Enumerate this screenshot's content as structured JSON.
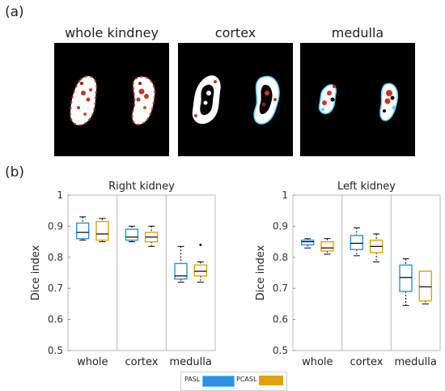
{
  "panel_a_label": "(a)",
  "panel_b_label": "(b)",
  "images": [
    {
      "title": "whole kindney"
    },
    {
      "title": "cortex"
    },
    {
      "title": "medulla"
    }
  ],
  "colors": {
    "pasl": "#2f8fe3",
    "pcasl": "#e3a00c",
    "median": "#000000"
  },
  "legend": {
    "pasl": "PASL",
    "pcasl": "PCASL"
  },
  "chart_data": [
    {
      "type": "box",
      "title": "Right kidney",
      "ylabel": "Dice index",
      "ylim": [
        0.5,
        1
      ],
      "yticks": [
        "0.5",
        "0.6",
        "0.7",
        "0.8",
        "0.9",
        "1"
      ],
      "categories": [
        "whole",
        "cortex",
        "medulla"
      ],
      "series": [
        {
          "name": "PASL",
          "boxes": [
            {
              "min": 0.855,
              "q1": 0.86,
              "median": 0.88,
              "q3": 0.91,
              "max": 0.93,
              "outliers": []
            },
            {
              "min": 0.85,
              "q1": 0.855,
              "median": 0.865,
              "q3": 0.89,
              "max": 0.9,
              "outliers": []
            },
            {
              "min": 0.72,
              "q1": 0.73,
              "median": 0.74,
              "q3": 0.78,
              "max": 0.835,
              "outliers": []
            }
          ]
        },
        {
          "name": "PCASL",
          "boxes": [
            {
              "min": 0.85,
              "q1": 0.855,
              "median": 0.875,
              "q3": 0.915,
              "max": 0.925,
              "outliers": []
            },
            {
              "min": 0.835,
              "q1": 0.85,
              "median": 0.865,
              "q3": 0.88,
              "max": 0.9,
              "outliers": []
            },
            {
              "min": 0.72,
              "q1": 0.74,
              "median": 0.755,
              "q3": 0.775,
              "max": 0.785,
              "outliers": [
                0.84
              ]
            }
          ]
        }
      ]
    },
    {
      "type": "box",
      "title": "Left kidney",
      "ylabel": "Dice index",
      "ylim": [
        0.5,
        1
      ],
      "yticks": [
        "0.5",
        "0.6",
        "0.7",
        "0.8",
        "0.9",
        "1"
      ],
      "categories": [
        "whole",
        "cortex",
        "medulla"
      ],
      "series": [
        {
          "name": "PASL",
          "boxes": [
            {
              "min": 0.83,
              "q1": 0.84,
              "median": 0.85,
              "q3": 0.855,
              "max": 0.86,
              "outliers": []
            },
            {
              "min": 0.805,
              "q1": 0.825,
              "median": 0.845,
              "q3": 0.87,
              "max": 0.895,
              "outliers": []
            },
            {
              "min": 0.645,
              "q1": 0.69,
              "median": 0.735,
              "q3": 0.775,
              "max": 0.795,
              "outliers": []
            }
          ]
        },
        {
          "name": "PCASL",
          "boxes": [
            {
              "min": 0.81,
              "q1": 0.82,
              "median": 0.83,
              "q3": 0.85,
              "max": 0.86,
              "outliers": []
            },
            {
              "min": 0.785,
              "q1": 0.815,
              "median": 0.835,
              "q3": 0.855,
              "max": 0.875,
              "outliers": []
            },
            {
              "min": 0.65,
              "q1": 0.66,
              "median": 0.705,
              "q3": 0.755,
              "max": 0.755,
              "outliers": []
            }
          ]
        }
      ]
    }
  ]
}
